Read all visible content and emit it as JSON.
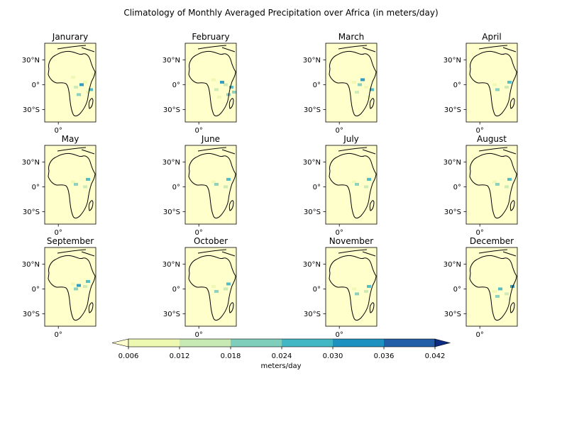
{
  "chart_data": {
    "type": "heatmap",
    "title": "Climatology of Monthly Averaged Precipitation over Africa (in meters/day)",
    "panels": [
      {
        "title": "Janurary",
        "wet_cells": [
          [
            0.2,
            0.0065
          ],
          [
            0.1,
            0.0065
          ],
          [
            0.0,
            0.012
          ],
          [
            -0.1,
            0.0065
          ],
          [
            -0.15,
            0.018
          ],
          [
            -0.05,
            0.024
          ],
          [
            0.05,
            0.03
          ],
          [
            0.25,
            0.0065
          ]
        ]
      },
      {
        "title": "February",
        "wet_cells": [
          [
            0.15,
            0.0065
          ],
          [
            0.05,
            0.012
          ],
          [
            -0.05,
            0.012
          ],
          [
            -0.15,
            0.018
          ],
          [
            -0.2,
            0.0065
          ],
          [
            0.0,
            0.024
          ],
          [
            0.1,
            0.03
          ],
          [
            -0.1,
            0.018
          ]
        ]
      },
      {
        "title": "March",
        "wet_cells": [
          [
            0.1,
            0.0065
          ],
          [
            0.0,
            0.0065
          ],
          [
            -0.1,
            0.012
          ],
          [
            -0.2,
            0.0065
          ],
          [
            0.05,
            0.018
          ],
          [
            -0.05,
            0.024
          ],
          [
            0.15,
            0.03
          ]
        ]
      },
      {
        "title": "April",
        "wet_cells": [
          [
            0.05,
            0.0065
          ],
          [
            0.0,
            0.012
          ],
          [
            -0.05,
            0.018
          ],
          [
            0.1,
            0.024
          ]
        ]
      },
      {
        "title": "May",
        "wet_cells": [
          [
            0.15,
            0.0065
          ],
          [
            0.05,
            0.012
          ],
          [
            0.1,
            0.018
          ],
          [
            0.2,
            0.024
          ]
        ]
      },
      {
        "title": "June",
        "wet_cells": [
          [
            0.15,
            0.0065
          ],
          [
            0.05,
            0.012
          ],
          [
            0.1,
            0.018
          ],
          [
            0.2,
            0.024
          ]
        ]
      },
      {
        "title": "July",
        "wet_cells": [
          [
            0.15,
            0.0065
          ],
          [
            0.05,
            0.012
          ],
          [
            0.1,
            0.018
          ],
          [
            0.2,
            0.024
          ]
        ]
      },
      {
        "title": "August",
        "wet_cells": [
          [
            0.15,
            0.0065
          ],
          [
            0.05,
            0.012
          ],
          [
            0.1,
            0.018
          ],
          [
            0.2,
            0.024
          ]
        ]
      },
      {
        "title": "September",
        "wet_cells": [
          [
            0.15,
            0.0065
          ],
          [
            0.1,
            0.012
          ],
          [
            0.05,
            0.018
          ],
          [
            0.2,
            0.024
          ],
          [
            0.12,
            0.03
          ]
        ]
      },
      {
        "title": "October",
        "wet_cells": [
          [
            0.1,
            0.0065
          ],
          [
            0.05,
            0.012
          ],
          [
            0.0,
            0.018
          ],
          [
            0.15,
            0.024
          ]
        ]
      },
      {
        "title": "November",
        "wet_cells": [
          [
            0.05,
            0.0065
          ],
          [
            0.0,
            0.012
          ],
          [
            -0.05,
            0.018
          ],
          [
            0.1,
            0.024
          ]
        ]
      },
      {
        "title": "December",
        "wet_cells": [
          [
            0.0,
            0.0065
          ],
          [
            -0.05,
            0.012
          ],
          [
            -0.1,
            0.018
          ],
          [
            -0.15,
            0.0065
          ],
          [
            0.05,
            0.024
          ],
          [
            0.1,
            0.03
          ]
        ]
      }
    ],
    "y_ticks": [
      "30°N",
      "0°",
      "30°S"
    ],
    "y_tick_values": [
      30,
      0,
      -30
    ],
    "x_ticks": [
      "0°"
    ],
    "x_tick_values": [
      0
    ],
    "lat_range": [
      -45,
      50
    ],
    "lon_range": [
      -20,
      55
    ],
    "colorbar": {
      "label": "meters/day",
      "ticks": [
        "0.006",
        "0.012",
        "0.018",
        "0.024",
        "0.030",
        "0.036",
        "0.042"
      ],
      "bounds": [
        0.006,
        0.012,
        0.018,
        0.024,
        0.03,
        0.036,
        0.042
      ],
      "colors": [
        "#edf8b1",
        "#c7e9b4",
        "#7fcdbb",
        "#41b6c4",
        "#1d91c0",
        "#225ea8",
        "#0c2c84"
      ],
      "under_color": "#ffffcc",
      "extend": "both"
    },
    "grid": false,
    "colormap": "YlGnBu"
  }
}
